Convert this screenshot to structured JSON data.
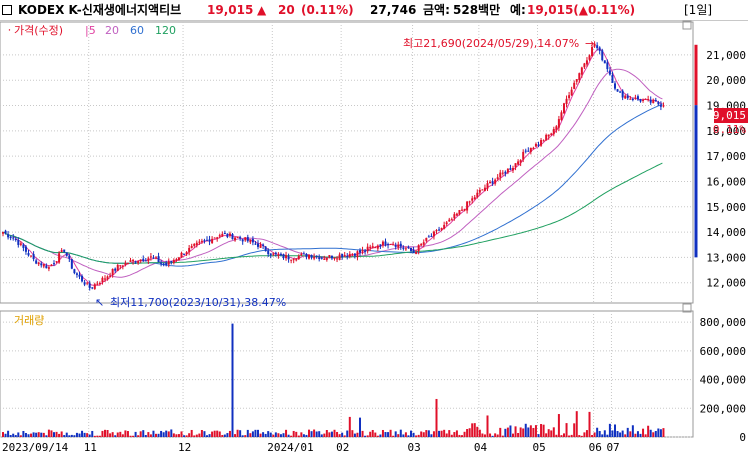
{
  "header": {
    "name": "KODEX K-신재생에너지액티브",
    "price": "19,015",
    "change_arrow": "▲",
    "change": "20",
    "change_pct": "(0.11%)",
    "volume": "27,746",
    "amount_label": "금액:",
    "amount": "528백만",
    "expected_label": "예:",
    "expected": "19,015(▲0.11%)",
    "period": "[1일]"
  },
  "legend": {
    "price_label": "가격(수정)",
    "ma": [
      {
        "label": "5",
        "color": "#e040a0"
      },
      {
        "label": "20",
        "color": "#c060c0"
      },
      {
        "label": "60",
        "color": "#3070d0"
      },
      {
        "label": "120",
        "color": "#20a060"
      }
    ],
    "volume_label": "거래량"
  },
  "annotations": {
    "high": "최고21,690(2024/05/29),14.07%",
    "low": "최저11,700(2023/10/31),38.47%"
  },
  "colors": {
    "up": "#e0102a",
    "down": "#1030c0",
    "grid": "#c8c8c8"
  },
  "chart_data": {
    "type": "candlestick",
    "price_axis": {
      "ylim": [
        11200,
        22300
      ],
      "ticks": [
        12000,
        13000,
        14000,
        15000,
        16000,
        17000,
        18000,
        19000,
        20000,
        21000
      ],
      "tick_labels": [
        "12,000",
        "13,000",
        "14,000",
        "15,000",
        "16,000",
        "17,000",
        "18,000",
        "19,000",
        "20,000",
        "21,000"
      ],
      "current_price": "19,015",
      "current_pct": "0.11%"
    },
    "volume_axis": {
      "ylim": [
        0,
        850000
      ],
      "ticks": [
        0,
        200000,
        400000,
        600000,
        800000
      ],
      "tick_labels": [
        "0",
        "200,000",
        "400,000",
        "600,000",
        "800,000"
      ]
    },
    "x_labels": [
      "2023/09/14",
      "11",
      "12",
      "2024/01",
      "02",
      "03",
      "04",
      "05",
      "06",
      "07"
    ],
    "x_label_index": [
      0,
      34,
      71,
      106,
      133,
      161,
      187,
      210,
      232,
      239
    ],
    "close_keyframes": [
      [
        0,
        14000
      ],
      [
        5,
        13700
      ],
      [
        12,
        12900
      ],
      [
        18,
        12600
      ],
      [
        24,
        13300
      ],
      [
        28,
        12400
      ],
      [
        34,
        11800
      ],
      [
        40,
        12200
      ],
      [
        46,
        12700
      ],
      [
        52,
        12900
      ],
      [
        58,
        13000
      ],
      [
        64,
        12700
      ],
      [
        71,
        13200
      ],
      [
        78,
        13600
      ],
      [
        85,
        13900
      ],
      [
        92,
        13800
      ],
      [
        100,
        13500
      ],
      [
        106,
        13100
      ],
      [
        112,
        13000
      ],
      [
        120,
        13100
      ],
      [
        126,
        13000
      ],
      [
        133,
        13100
      ],
      [
        140,
        13200
      ],
      [
        147,
        13500
      ],
      [
        152,
        13600
      ],
      [
        157,
        13400
      ],
      [
        161,
        13200
      ],
      [
        165,
        13600
      ],
      [
        170,
        14000
      ],
      [
        175,
        14400
      ],
      [
        181,
        15000
      ],
      [
        187,
        15600
      ],
      [
        193,
        16100
      ],
      [
        200,
        16600
      ],
      [
        206,
        17300
      ],
      [
        210,
        17500
      ],
      [
        216,
        18000
      ],
      [
        222,
        19500
      ],
      [
        228,
        20700
      ],
      [
        232,
        21450
      ],
      [
        237,
        20500
      ],
      [
        241,
        19500
      ],
      [
        246,
        19300
      ],
      [
        251,
        19200
      ],
      [
        256,
        19100
      ],
      [
        259,
        19015
      ]
    ],
    "candle_count": 260,
    "volume_spikes": [
      [
        90,
        790000
      ],
      [
        136,
        140000
      ],
      [
        140,
        135000
      ],
      [
        170,
        265000
      ],
      [
        190,
        150000
      ],
      [
        218,
        160000
      ],
      [
        225,
        180000
      ],
      [
        230,
        175000
      ]
    ]
  }
}
